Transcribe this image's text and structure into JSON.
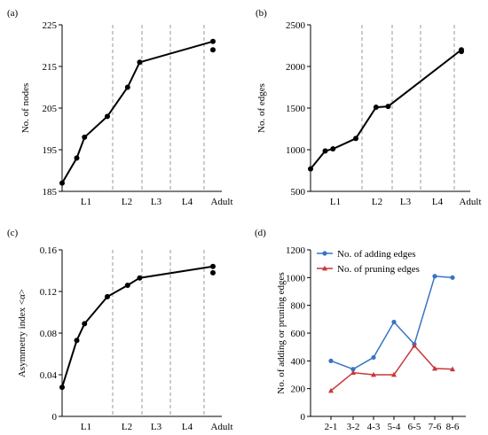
{
  "chart_data": [
    {
      "type": "line",
      "panel": "(a)",
      "ylabel": "No. of nodes",
      "ylim": [
        185,
        225
      ],
      "yticks": [
        185,
        195,
        205,
        215,
        225
      ],
      "stages": [
        "L1",
        "L2",
        "L3",
        "L4",
        "Adult"
      ],
      "points": [
        {
          "t": 0.0,
          "y": 187
        },
        {
          "t": 0.34,
          "y": 193
        },
        {
          "t": 0.52,
          "y": 198
        },
        {
          "t": 1.05,
          "y": 203
        },
        {
          "t": 1.52,
          "y": 210
        },
        {
          "t": 1.8,
          "y": 216
        },
        {
          "t": 3.5,
          "y": 221
        },
        {
          "t": 3.5,
          "y": 219
        }
      ]
    },
    {
      "type": "line",
      "panel": "(b)",
      "ylabel": "No. of edges",
      "ylim": [
        500,
        2500
      ],
      "yticks": [
        500,
        1000,
        1500,
        2000,
        2500
      ],
      "stages": [
        "L1",
        "L2",
        "L3",
        "L4",
        "Adult"
      ],
      "points": [
        {
          "t": 0.0,
          "y": 770
        },
        {
          "t": 0.34,
          "y": 985
        },
        {
          "t": 0.52,
          "y": 1010
        },
        {
          "t": 1.05,
          "y": 1135
        },
        {
          "t": 1.52,
          "y": 1510
        },
        {
          "t": 1.8,
          "y": 1520
        },
        {
          "t": 3.5,
          "y": 2200
        },
        {
          "t": 3.5,
          "y": 2180
        }
      ]
    },
    {
      "type": "line",
      "panel": "(c)",
      "ylabel": "Asymmetry index <α>",
      "ylim": [
        0,
        0.16
      ],
      "yticks": [
        0,
        0.04,
        0.08,
        0.12,
        0.16
      ],
      "ytick_labels": [
        "0",
        "0.04",
        "0.08",
        "0.12",
        "0.16"
      ],
      "stages": [
        "L1",
        "L2",
        "L3",
        "L4",
        "Adult"
      ],
      "points": [
        {
          "t": 0.0,
          "y": 0.028
        },
        {
          "t": 0.34,
          "y": 0.073
        },
        {
          "t": 0.52,
          "y": 0.089
        },
        {
          "t": 1.05,
          "y": 0.115
        },
        {
          "t": 1.52,
          "y": 0.126
        },
        {
          "t": 1.8,
          "y": 0.133
        },
        {
          "t": 3.5,
          "y": 0.144
        },
        {
          "t": 3.5,
          "y": 0.138
        }
      ]
    },
    {
      "type": "line",
      "panel": "(d)",
      "ylabel": "No. of adding or pruning edges",
      "ylim": [
        0,
        1200
      ],
      "yticks": [
        0,
        200,
        400,
        600,
        800,
        1000,
        1200
      ],
      "categories": [
        "2-1",
        "3-2",
        "4-3",
        "5-4",
        "6-5",
        "7-6",
        "8-6"
      ],
      "legend": "top-left",
      "series": [
        {
          "name": "No. of adding edges",
          "color": "#3a73c4",
          "marker": "circle",
          "values": [
            400,
            340,
            425,
            680,
            520,
            1010,
            1000
          ]
        },
        {
          "name": "No. of pruning edges",
          "color": "#c9373a",
          "marker": "triangle",
          "values": [
            185,
            315,
            300,
            300,
            510,
            345,
            340
          ]
        }
      ]
    }
  ]
}
